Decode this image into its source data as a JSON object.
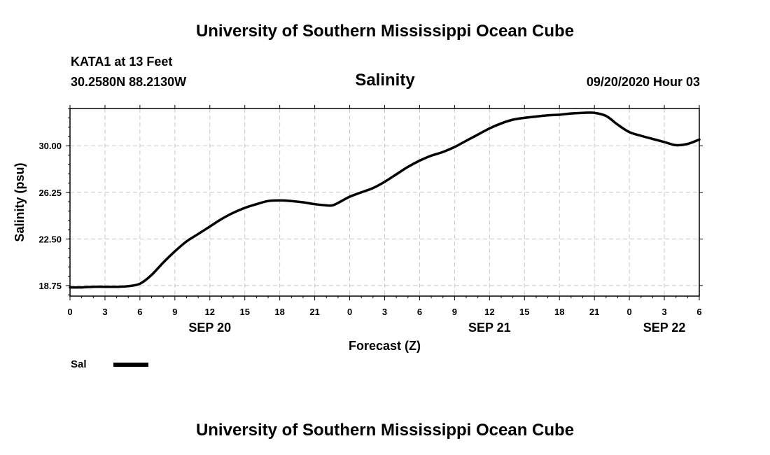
{
  "header": {
    "title": "University of Southern Mississippi Ocean Cube",
    "station": "KATA1 at 13 Feet",
    "coordinates": "30.2580N 88.2130W",
    "timestamp": "09/20/2020 Hour 03"
  },
  "footer": {
    "title": "University of Southern Mississippi Ocean Cube"
  },
  "colors": {
    "line": "#000000",
    "grid": "#c8c8c8",
    "frame": "#000000"
  },
  "chart_data": {
    "type": "line",
    "title": "Salinity",
    "xlabel": "Forecast (Z)",
    "ylabel": "Salinity (psu)",
    "x_unit": "hours since SEP 20 00Z",
    "xlim": [
      0,
      54
    ],
    "ylim": [
      17.9,
      33.0
    ],
    "grid": true,
    "x_ticks": [
      {
        "x": 0,
        "label": "0"
      },
      {
        "x": 3,
        "label": "3"
      },
      {
        "x": 6,
        "label": "6"
      },
      {
        "x": 9,
        "label": "9"
      },
      {
        "x": 12,
        "label": "12"
      },
      {
        "x": 15,
        "label": "15"
      },
      {
        "x": 18,
        "label": "18"
      },
      {
        "x": 21,
        "label": "21"
      },
      {
        "x": 24,
        "label": "0"
      },
      {
        "x": 27,
        "label": "3"
      },
      {
        "x": 30,
        "label": "6"
      },
      {
        "x": 33,
        "label": "9"
      },
      {
        "x": 36,
        "label": "12"
      },
      {
        "x": 39,
        "label": "15"
      },
      {
        "x": 42,
        "label": "18"
      },
      {
        "x": 45,
        "label": "21"
      },
      {
        "x": 48,
        "label": "0"
      },
      {
        "x": 51,
        "label": "3"
      },
      {
        "x": 54,
        "label": "6"
      }
    ],
    "date_labels": [
      {
        "x": 12,
        "label": "SEP 20"
      },
      {
        "x": 36,
        "label": "SEP 21"
      },
      {
        "x": 51,
        "label": "SEP 22"
      }
    ],
    "y_ticks": [
      {
        "y": 18.75,
        "label": "18.75"
      },
      {
        "y": 22.5,
        "label": "22.50"
      },
      {
        "y": 26.25,
        "label": "26.25"
      },
      {
        "y": 30.0,
        "label": "30.00"
      }
    ],
    "legend": {
      "position": "bottom-left",
      "label": "Sal"
    },
    "series": [
      {
        "name": "Sal",
        "x": [
          0,
          1,
          2,
          3,
          4,
          5,
          6,
          7,
          8,
          9,
          10,
          11,
          12,
          13,
          14,
          15,
          16,
          17,
          18,
          19,
          20,
          21,
          22,
          22.5,
          23,
          24,
          25,
          26,
          27,
          28,
          29,
          30,
          31,
          32,
          33,
          34,
          35,
          36,
          37,
          38,
          39,
          40,
          41,
          42,
          43,
          44,
          45,
          46,
          47,
          48,
          49,
          50,
          51,
          52,
          53,
          54
        ],
        "y": [
          18.6,
          18.6,
          18.65,
          18.65,
          18.65,
          18.7,
          18.9,
          19.6,
          20.6,
          21.5,
          22.3,
          22.9,
          23.5,
          24.1,
          24.6,
          25.0,
          25.3,
          25.55,
          25.6,
          25.55,
          25.45,
          25.3,
          25.2,
          25.2,
          25.4,
          25.9,
          26.25,
          26.6,
          27.1,
          27.7,
          28.3,
          28.8,
          29.2,
          29.5,
          29.9,
          30.4,
          30.9,
          31.4,
          31.8,
          32.1,
          32.25,
          32.35,
          32.45,
          32.5,
          32.6,
          32.65,
          32.65,
          32.4,
          31.7,
          31.1,
          30.8,
          30.55,
          30.3,
          30.05,
          30.15,
          30.5
        ]
      }
    ]
  }
}
